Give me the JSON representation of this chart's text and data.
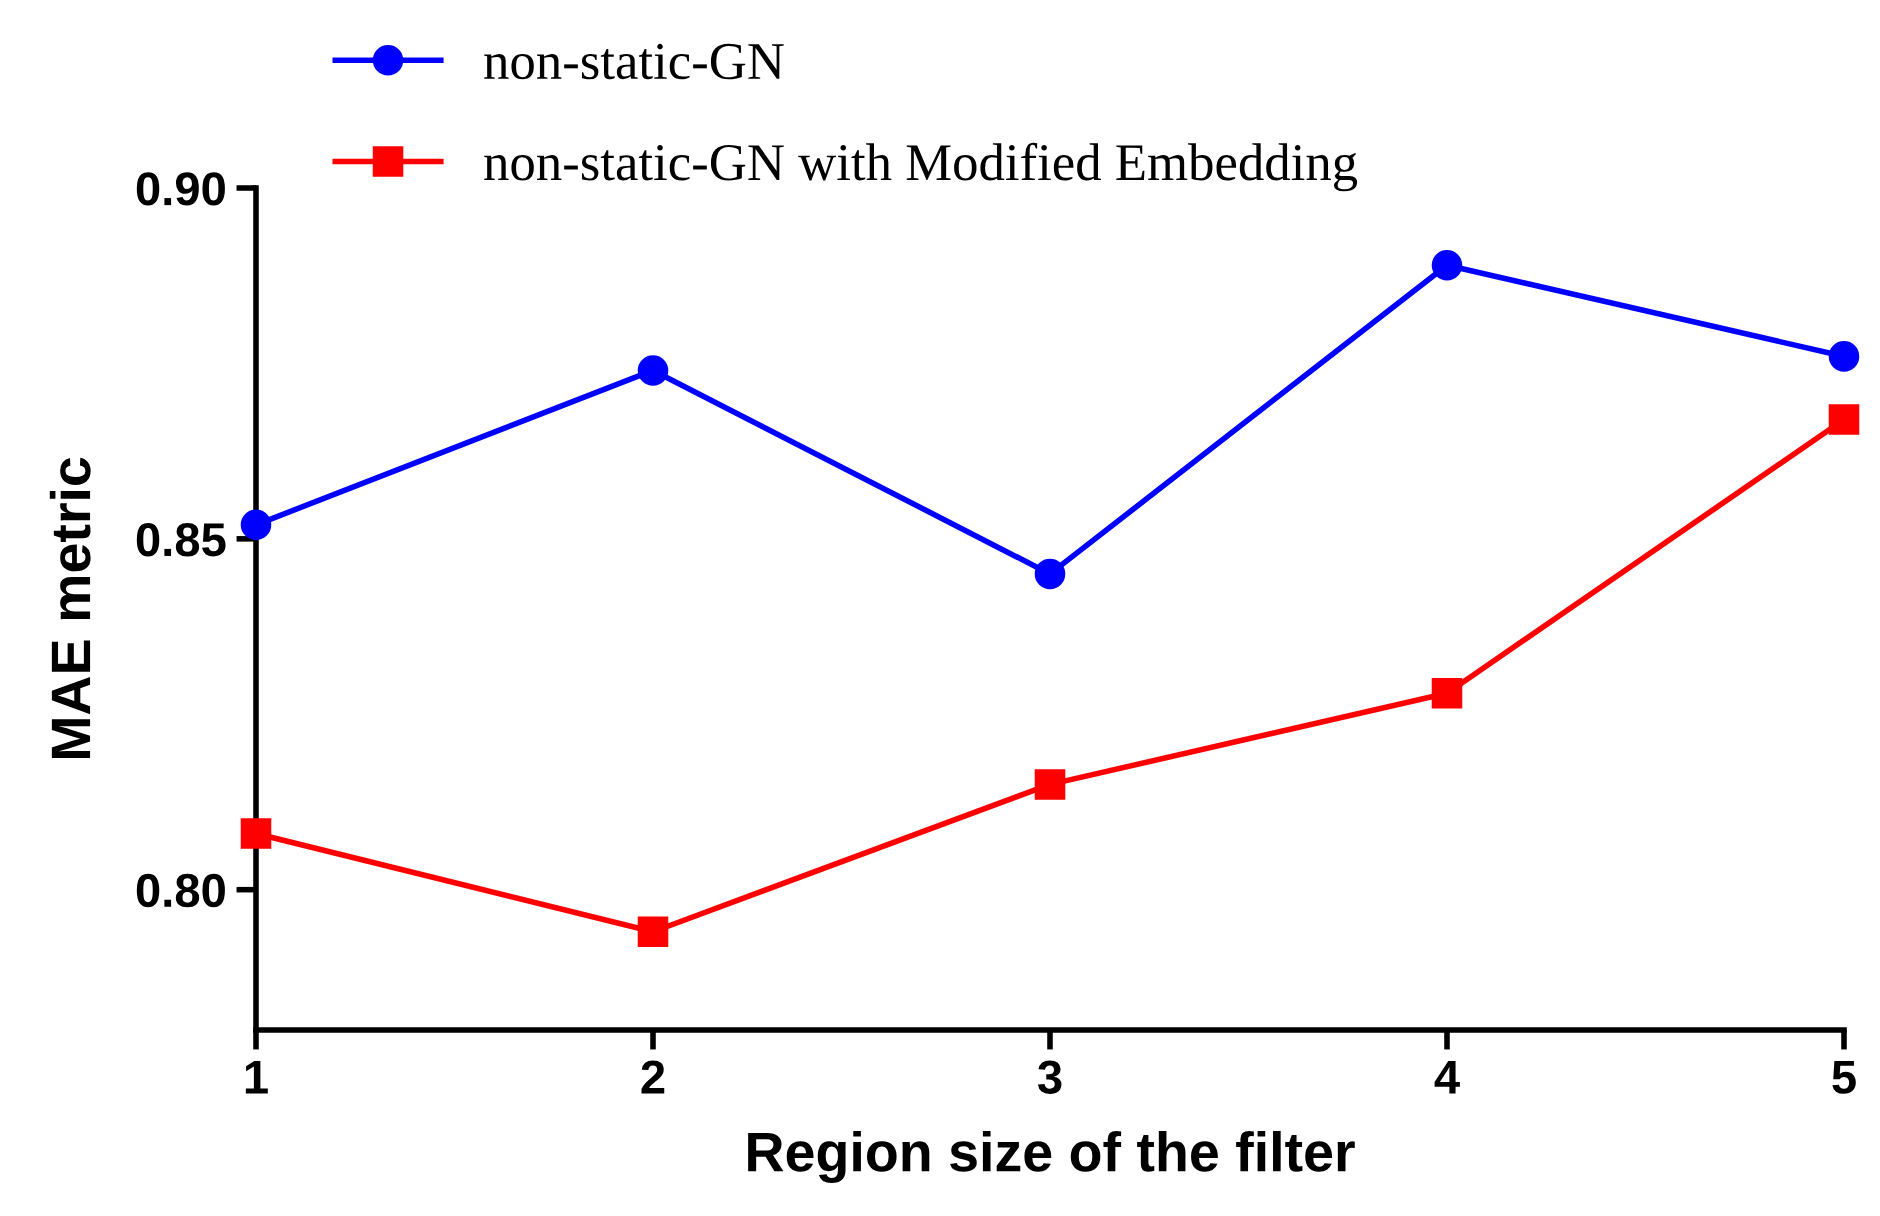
{
  "chart_data": {
    "type": "line",
    "xlabel": "Region size of the filter",
    "ylabel": "MAE metric",
    "x": [
      1,
      2,
      3,
      4,
      5
    ],
    "series": [
      {
        "name": "non-static-GN",
        "color": "#0000ff",
        "marker": "circle",
        "values": [
          0.852,
          0.874,
          0.845,
          0.889,
          0.876
        ]
      },
      {
        "name": "non-static-GN with Modified Embedding",
        "color": "#ff0000",
        "marker": "square",
        "values": [
          0.808,
          0.794,
          0.815,
          0.828,
          0.867
        ]
      }
    ],
    "xlim": [
      1,
      5
    ],
    "xticks": [
      1,
      2,
      3,
      4,
      5
    ],
    "ylim": [
      0.78,
      0.9
    ],
    "yticks": [
      {
        "value": 0.8,
        "label": "0.80"
      },
      {
        "value": 0.85,
        "label": "0.85"
      },
      {
        "value": 0.9,
        "label": "0.90"
      }
    ],
    "grid": false,
    "legend": "top",
    "line_style": "solid"
  }
}
